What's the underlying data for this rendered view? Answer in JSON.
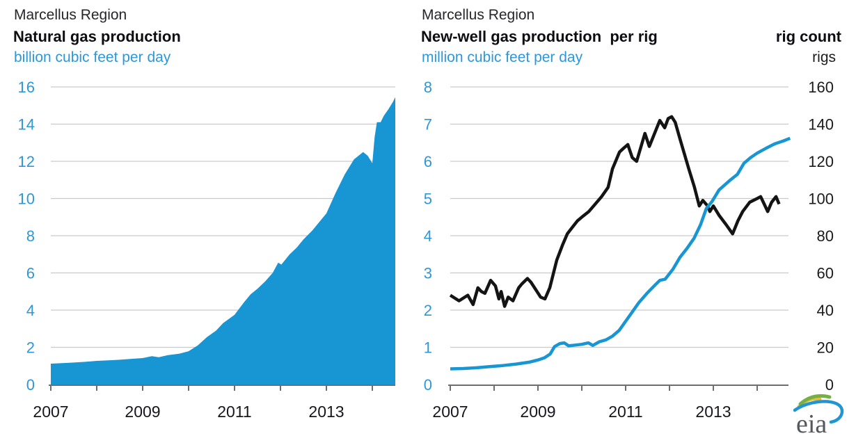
{
  "colors": {
    "blue": "#1796d3",
    "label_blue": "#2d97d8",
    "line_black": "#141414",
    "grid": "#c9c9c9",
    "axis": "#6e6e6e",
    "year_label": "#16161e",
    "right_label": "#1b1b1b",
    "logo_text": "#55575c",
    "logo_green": "#76b043",
    "logo_yellow": "#e3c03c",
    "logo_blue": "#2095d2"
  },
  "logo": {
    "text": "eia"
  },
  "chart_data": [
    {
      "type": "area",
      "region": "Marcellus Region",
      "title": "Natural gas production",
      "ylabel": "billion cubic feet per day",
      "ylim": [
        0,
        16
      ],
      "yticks": [
        0,
        2,
        4,
        6,
        8,
        10,
        12,
        14,
        16
      ],
      "xlim": [
        2007,
        2014.5
      ],
      "xticks": [
        2007,
        2008,
        2009,
        2010,
        2011,
        2012,
        2013,
        2014
      ],
      "xtick_labels": [
        "2007",
        "2009",
        "2011",
        "2013"
      ],
      "grid": true,
      "legend": "none",
      "series": [
        {
          "name": "Natural gas production",
          "id": "production-area",
          "color": "#1796d3",
          "points": [
            [
              2007.0,
              1.12
            ],
            [
              2007.25,
              1.15
            ],
            [
              2007.5,
              1.18
            ],
            [
              2007.75,
              1.22
            ],
            [
              2008.0,
              1.27
            ],
            [
              2008.25,
              1.3
            ],
            [
              2008.5,
              1.33
            ],
            [
              2008.75,
              1.38
            ],
            [
              2009.0,
              1.42
            ],
            [
              2009.2,
              1.52
            ],
            [
              2009.35,
              1.47
            ],
            [
              2009.55,
              1.58
            ],
            [
              2009.8,
              1.66
            ],
            [
              2010.0,
              1.79
            ],
            [
              2010.2,
              2.1
            ],
            [
              2010.4,
              2.55
            ],
            [
              2010.6,
              2.9
            ],
            [
              2010.75,
              3.3
            ],
            [
              2011.0,
              3.75
            ],
            [
              2011.2,
              4.4
            ],
            [
              2011.35,
              4.85
            ],
            [
              2011.5,
              5.15
            ],
            [
              2011.67,
              5.55
            ],
            [
              2011.83,
              6.0
            ],
            [
              2011.95,
              6.55
            ],
            [
              2012.02,
              6.45
            ],
            [
              2012.2,
              7.0
            ],
            [
              2012.35,
              7.35
            ],
            [
              2012.5,
              7.8
            ],
            [
              2012.7,
              8.3
            ],
            [
              2012.9,
              8.9
            ],
            [
              2013.0,
              9.2
            ],
            [
              2013.2,
              10.3
            ],
            [
              2013.4,
              11.3
            ],
            [
              2013.6,
              12.1
            ],
            [
              2013.8,
              12.5
            ],
            [
              2013.9,
              12.3
            ],
            [
              2014.0,
              11.9
            ],
            [
              2014.05,
              13.3
            ],
            [
              2014.1,
              14.1
            ],
            [
              2014.18,
              14.1
            ],
            [
              2014.25,
              14.45
            ],
            [
              2014.35,
              14.8
            ],
            [
              2014.45,
              15.2
            ],
            [
              2014.5,
              15.45
            ]
          ]
        }
      ]
    },
    {
      "type": "line",
      "region": "Marcellus Region",
      "title": "New-well gas production  per rig",
      "right_title": "rig count",
      "left_axis": {
        "label": "million cubic feet per day",
        "lim": [
          0,
          8
        ],
        "ticks": [
          0,
          1,
          2,
          3,
          4,
          5,
          6,
          7,
          8
        ]
      },
      "right_axis": {
        "label": "rigs",
        "lim": [
          0,
          160
        ],
        "ticks": [
          0,
          20,
          40,
          60,
          80,
          100,
          120,
          140,
          160
        ]
      },
      "xlim": [
        2007,
        2014.75
      ],
      "xticks": [
        2007,
        2008,
        2009,
        2010,
        2011,
        2012,
        2013,
        2014
      ],
      "xtick_labels": [
        "2007",
        "2009",
        "2011",
        "2013"
      ],
      "grid": true,
      "legend": "none",
      "series": [
        {
          "name": "Rig count",
          "id": "rig-count-line",
          "axis": "right",
          "color": "#141414",
          "points": [
            [
              2007.0,
              48
            ],
            [
              2007.2,
              45
            ],
            [
              2007.4,
              48
            ],
            [
              2007.52,
              43
            ],
            [
              2007.63,
              52
            ],
            [
              2007.71,
              50
            ],
            [
              2007.79,
              49
            ],
            [
              2007.92,
              56
            ],
            [
              2008.03,
              53
            ],
            [
              2008.11,
              46
            ],
            [
              2008.16,
              50
            ],
            [
              2008.24,
              42
            ],
            [
              2008.32,
              47
            ],
            [
              2008.43,
              45
            ],
            [
              2008.56,
              52
            ],
            [
              2008.63,
              54
            ],
            [
              2008.76,
              57
            ],
            [
              2008.84,
              55
            ],
            [
              2008.95,
              51
            ],
            [
              2009.06,
              47
            ],
            [
              2009.16,
              46
            ],
            [
              2009.27,
              52
            ],
            [
              2009.43,
              67
            ],
            [
              2009.56,
              75
            ],
            [
              2009.67,
              81
            ],
            [
              2009.8,
              85
            ],
            [
              2009.9,
              88
            ],
            [
              2010.0,
              90
            ],
            [
              2010.16,
              93
            ],
            [
              2010.27,
              96
            ],
            [
              2010.45,
              101
            ],
            [
              2010.6,
              106
            ],
            [
              2010.7,
              116
            ],
            [
              2010.86,
              125
            ],
            [
              2010.95,
              127
            ],
            [
              2011.05,
              129
            ],
            [
              2011.15,
              122
            ],
            [
              2011.25,
              120
            ],
            [
              2011.44,
              135
            ],
            [
              2011.54,
              128
            ],
            [
              2011.78,
              142
            ],
            [
              2011.89,
              138
            ],
            [
              2011.97,
              143
            ],
            [
              2012.05,
              144
            ],
            [
              2012.13,
              141
            ],
            [
              2012.24,
              132
            ],
            [
              2012.44,
              116
            ],
            [
              2012.57,
              106
            ],
            [
              2012.68,
              96
            ],
            [
              2012.76,
              99
            ],
            [
              2012.87,
              96
            ],
            [
              2012.92,
              93
            ],
            [
              2013.0,
              96
            ],
            [
              2013.13,
              91
            ],
            [
              2013.29,
              86
            ],
            [
              2013.44,
              81
            ],
            [
              2013.56,
              88
            ],
            [
              2013.67,
              93
            ],
            [
              2013.83,
              98
            ],
            [
              2014.0,
              100
            ],
            [
              2014.08,
              101
            ],
            [
              2014.16,
              97
            ],
            [
              2014.24,
              93
            ],
            [
              2014.33,
              98
            ],
            [
              2014.43,
              101
            ],
            [
              2014.5,
              97
            ]
          ]
        },
        {
          "name": "New-well gas production per rig",
          "id": "per-rig-line",
          "axis": "left",
          "color": "#1796d3",
          "points": [
            [
              2007.0,
              0.42
            ],
            [
              2007.3,
              0.43
            ],
            [
              2007.6,
              0.45
            ],
            [
              2007.9,
              0.48
            ],
            [
              2008.2,
              0.51
            ],
            [
              2008.5,
              0.55
            ],
            [
              2008.8,
              0.6
            ],
            [
              2009.0,
              0.66
            ],
            [
              2009.15,
              0.72
            ],
            [
              2009.28,
              0.82
            ],
            [
              2009.38,
              1.02
            ],
            [
              2009.5,
              1.1
            ],
            [
              2009.6,
              1.12
            ],
            [
              2009.7,
              1.04
            ],
            [
              2009.85,
              1.06
            ],
            [
              2010.0,
              1.08
            ],
            [
              2010.15,
              1.12
            ],
            [
              2010.25,
              1.05
            ],
            [
              2010.4,
              1.15
            ],
            [
              2010.55,
              1.2
            ],
            [
              2010.7,
              1.3
            ],
            [
              2010.85,
              1.45
            ],
            [
              2011.0,
              1.7
            ],
            [
              2011.15,
              1.95
            ],
            [
              2011.3,
              2.2
            ],
            [
              2011.5,
              2.47
            ],
            [
              2011.65,
              2.65
            ],
            [
              2011.78,
              2.8
            ],
            [
              2011.9,
              2.83
            ],
            [
              2012.08,
              3.1
            ],
            [
              2012.24,
              3.42
            ],
            [
              2012.4,
              3.66
            ],
            [
              2012.56,
              3.93
            ],
            [
              2012.71,
              4.3
            ],
            [
              2012.84,
              4.73
            ],
            [
              2012.97,
              4.92
            ],
            [
              2013.13,
              5.23
            ],
            [
              2013.37,
              5.48
            ],
            [
              2013.55,
              5.65
            ],
            [
              2013.7,
              5.95
            ],
            [
              2013.85,
              6.1
            ],
            [
              2014.0,
              6.22
            ],
            [
              2014.2,
              6.35
            ],
            [
              2014.4,
              6.47
            ],
            [
              2014.6,
              6.55
            ],
            [
              2014.75,
              6.62
            ]
          ]
        }
      ]
    }
  ]
}
